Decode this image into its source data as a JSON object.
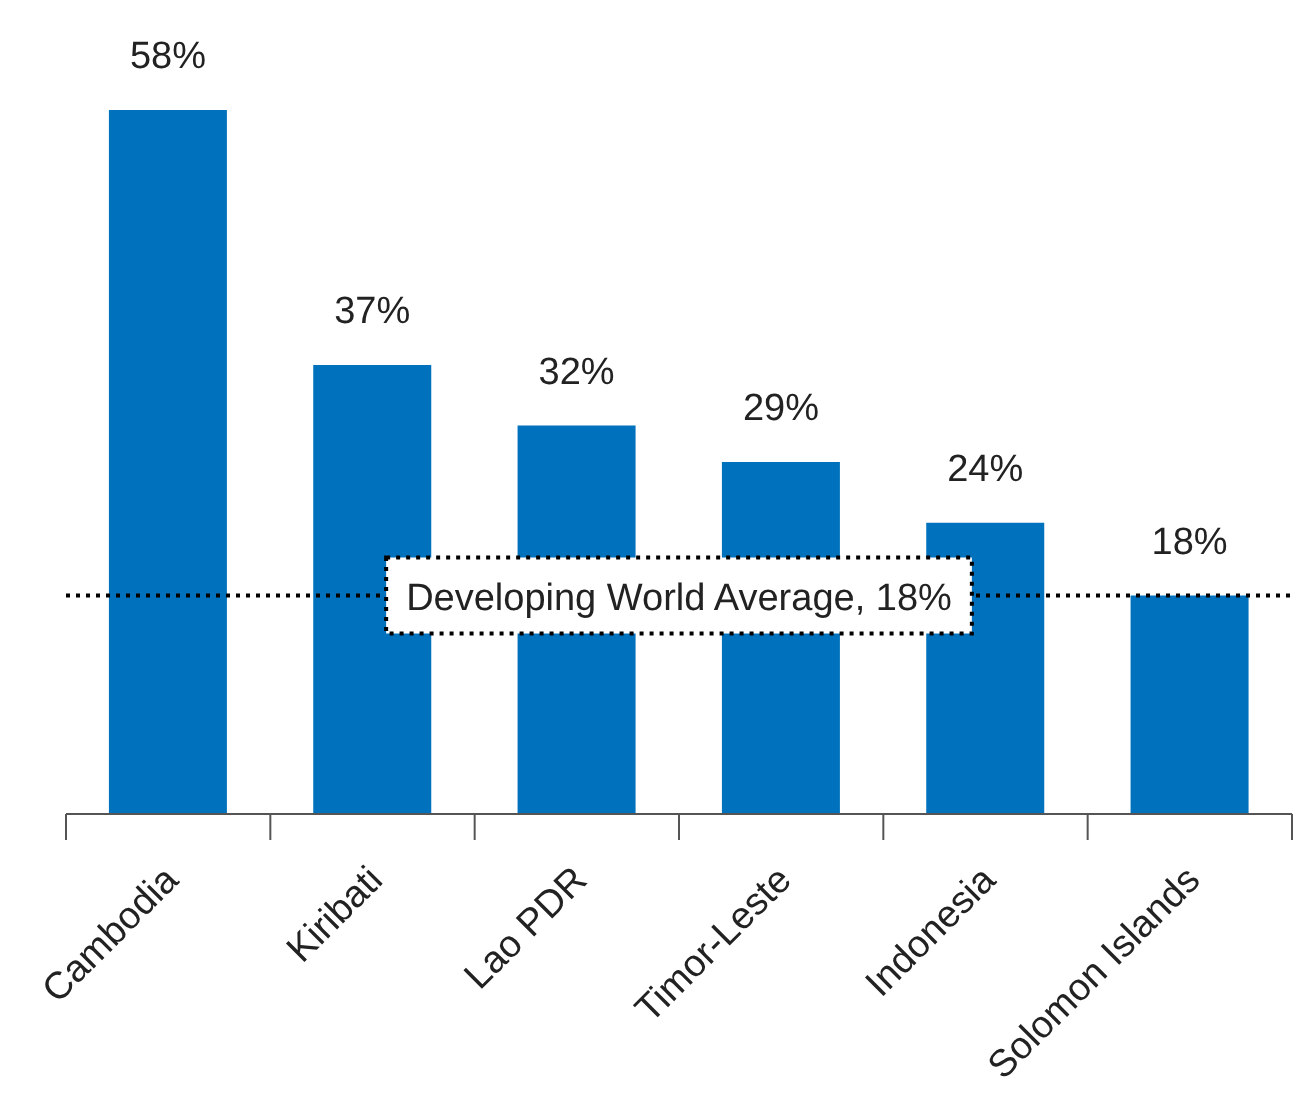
{
  "chart_data": {
    "type": "bar",
    "categories": [
      "Cambodia",
      "Kiribati",
      "Lao PDR",
      "Timor-Leste",
      "Indonesia",
      "Solomon Islands"
    ],
    "values": [
      58,
      37,
      32,
      29,
      24,
      18
    ],
    "color": "#0071bc",
    "value_labels": [
      "58%",
      "37%",
      "32%",
      "29%",
      "24%",
      "18%"
    ],
    "ref_lines": [
      {
        "axis": "y",
        "value": 18,
        "label": "Developing World Average, 18%",
        "color": "#000000",
        "line_style": "dotted"
      }
    ],
    "tick_labels": "x"
  }
}
